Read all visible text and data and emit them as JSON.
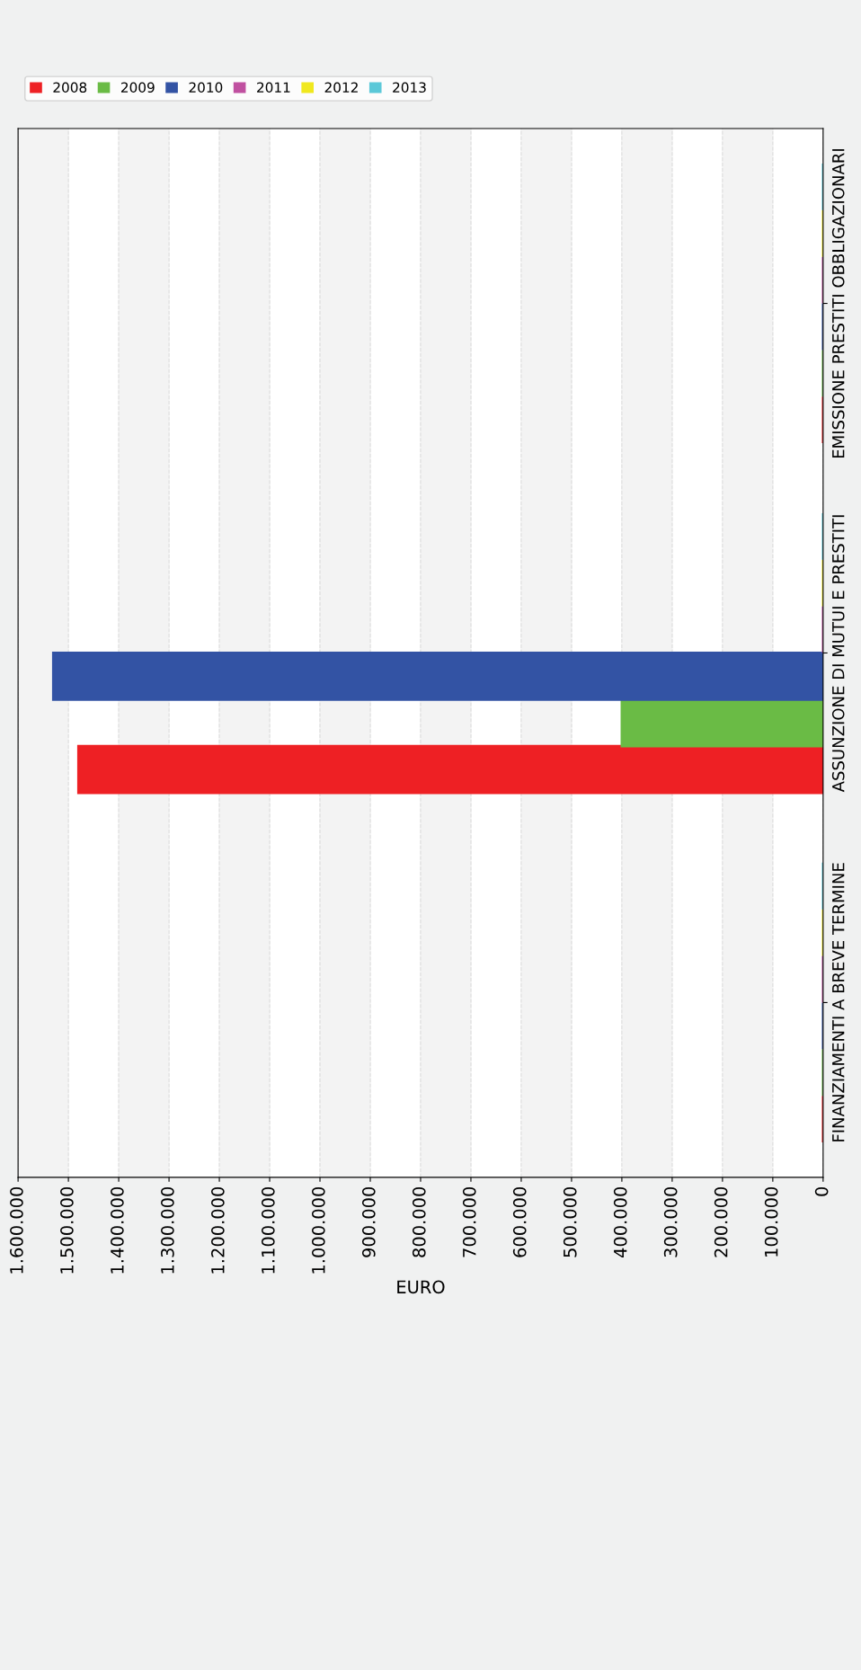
{
  "chart_data": {
    "type": "bar",
    "orientation": "horizontal",
    "xlabel": "EURO",
    "categories": [
      "EMISSIONE PRESTITI OBBLIGAZIONARI",
      "ASSUNZIONE DI MUTUI E PRESTITI",
      "FINANZIAMENTI A BREVE TERMINE"
    ],
    "series": [
      {
        "name": "2008",
        "color": "#ee2024",
        "values": [
          0,
          1480000,
          0
        ]
      },
      {
        "name": "2009",
        "color": "#6abb45",
        "values": [
          0,
          400000,
          0
        ]
      },
      {
        "name": "2010",
        "color": "#3353a4",
        "values": [
          0,
          1530000,
          0
        ]
      },
      {
        "name": "2011",
        "color": "#c050a0",
        "values": [
          0,
          0,
          0
        ]
      },
      {
        "name": "2012",
        "color": "#f0e81e",
        "values": [
          0,
          0,
          0
        ]
      },
      {
        "name": "2013",
        "color": "#5bc8d8",
        "values": [
          0,
          0,
          0
        ]
      }
    ],
    "xlim": [
      1600000,
      0
    ],
    "xticks": [
      {
        "value": 1600000,
        "label": "1.600.000"
      },
      {
        "value": 1500000,
        "label": "1.500.000"
      },
      {
        "value": 1400000,
        "label": "1.400.000"
      },
      {
        "value": 1300000,
        "label": "1.300.000"
      },
      {
        "value": 1200000,
        "label": "1.200.000"
      },
      {
        "value": 1100000,
        "label": "1.100.000"
      },
      {
        "value": 1000000,
        "label": "1.000.000"
      },
      {
        "value": 900000,
        "label": "900.000"
      },
      {
        "value": 800000,
        "label": "800.000"
      },
      {
        "value": 700000,
        "label": "700.000"
      },
      {
        "value": 600000,
        "label": "600.000"
      },
      {
        "value": 500000,
        "label": "500.000"
      },
      {
        "value": 400000,
        "label": "400.000"
      },
      {
        "value": 300000,
        "label": "300.000"
      },
      {
        "value": 200000,
        "label": "200.000"
      },
      {
        "value": 100000,
        "label": "100.000"
      },
      0
    ],
    "grid": "x",
    "legend": "top left"
  }
}
